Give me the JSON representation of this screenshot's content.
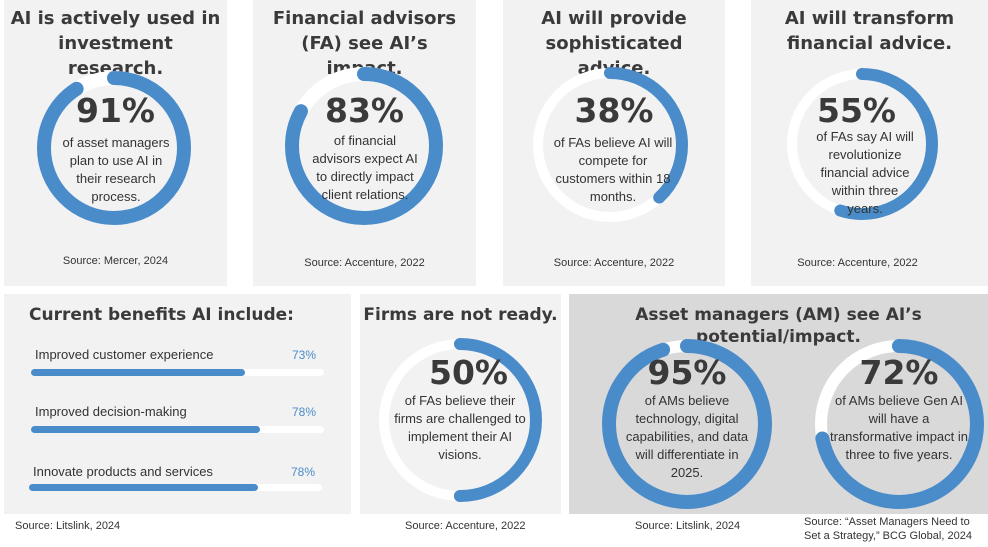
{
  "accent_color": "#4a8cc9",
  "track_color": "#ffffff",
  "chart_data": [
    {
      "type": "pie",
      "title": "AI is actively used in investment research.",
      "value": 91,
      "value_label": "91%",
      "description": "of asset managers plan to use AI in their research process.",
      "source": "Source: Mercer, 2024"
    },
    {
      "type": "pie",
      "title": "Financial advisors (FA) see AI’s impact.",
      "value": 83,
      "value_label": "83%",
      "description": "of financial advisors expect AI to directly impact client relations.",
      "source": "Source: Accenture, 2022"
    },
    {
      "type": "pie",
      "title": "AI will provide sophisticated advice.",
      "value": 38,
      "value_label": "38%",
      "description": "of FAs believe AI will compete for customers within 18 months.",
      "source": "Source: Accenture, 2022"
    },
    {
      "type": "pie",
      "title": "AI will transform financial advice.",
      "value": 55,
      "value_label": "55%",
      "description": "of FAs say AI will revolutionize financial advice within three years.",
      "source": "Source: Accenture, 2022"
    },
    {
      "type": "bar",
      "title": "Current benefits AI include:",
      "categories": [
        "Improved customer experience",
        "Improved decision-making",
        "Innovate products and services"
      ],
      "values": [
        73,
        78,
        78
      ],
      "value_labels": [
        "73%",
        "78%",
        "78%"
      ],
      "ylim": [
        0,
        100
      ],
      "source": "Source: Litslink, 2024"
    },
    {
      "type": "pie",
      "title": "Firms are not ready.",
      "value": 50,
      "value_label": "50%",
      "description": "of FAs believe their firms are challenged to implement their AI visions.",
      "source": "Source: Accenture, 2022"
    },
    {
      "type": "pie",
      "group_title": "Asset managers (AM) see AI’s potential/impact.",
      "value": 95,
      "value_label": "95%",
      "description": "of AMs believe technology, digital capabilities, and data will differentiate in 2025.",
      "source": "Source: Litslink, 2024"
    },
    {
      "type": "pie",
      "group_title": "Asset managers (AM) see AI’s potential/impact.",
      "value": 72,
      "value_label": "72%",
      "description": "of AMs believe Gen AI will have a transformative impact in three to five years.",
      "source": "Source: “Asset Managers Need to Set a Strategy,” BCG Global, 2024"
    }
  ]
}
